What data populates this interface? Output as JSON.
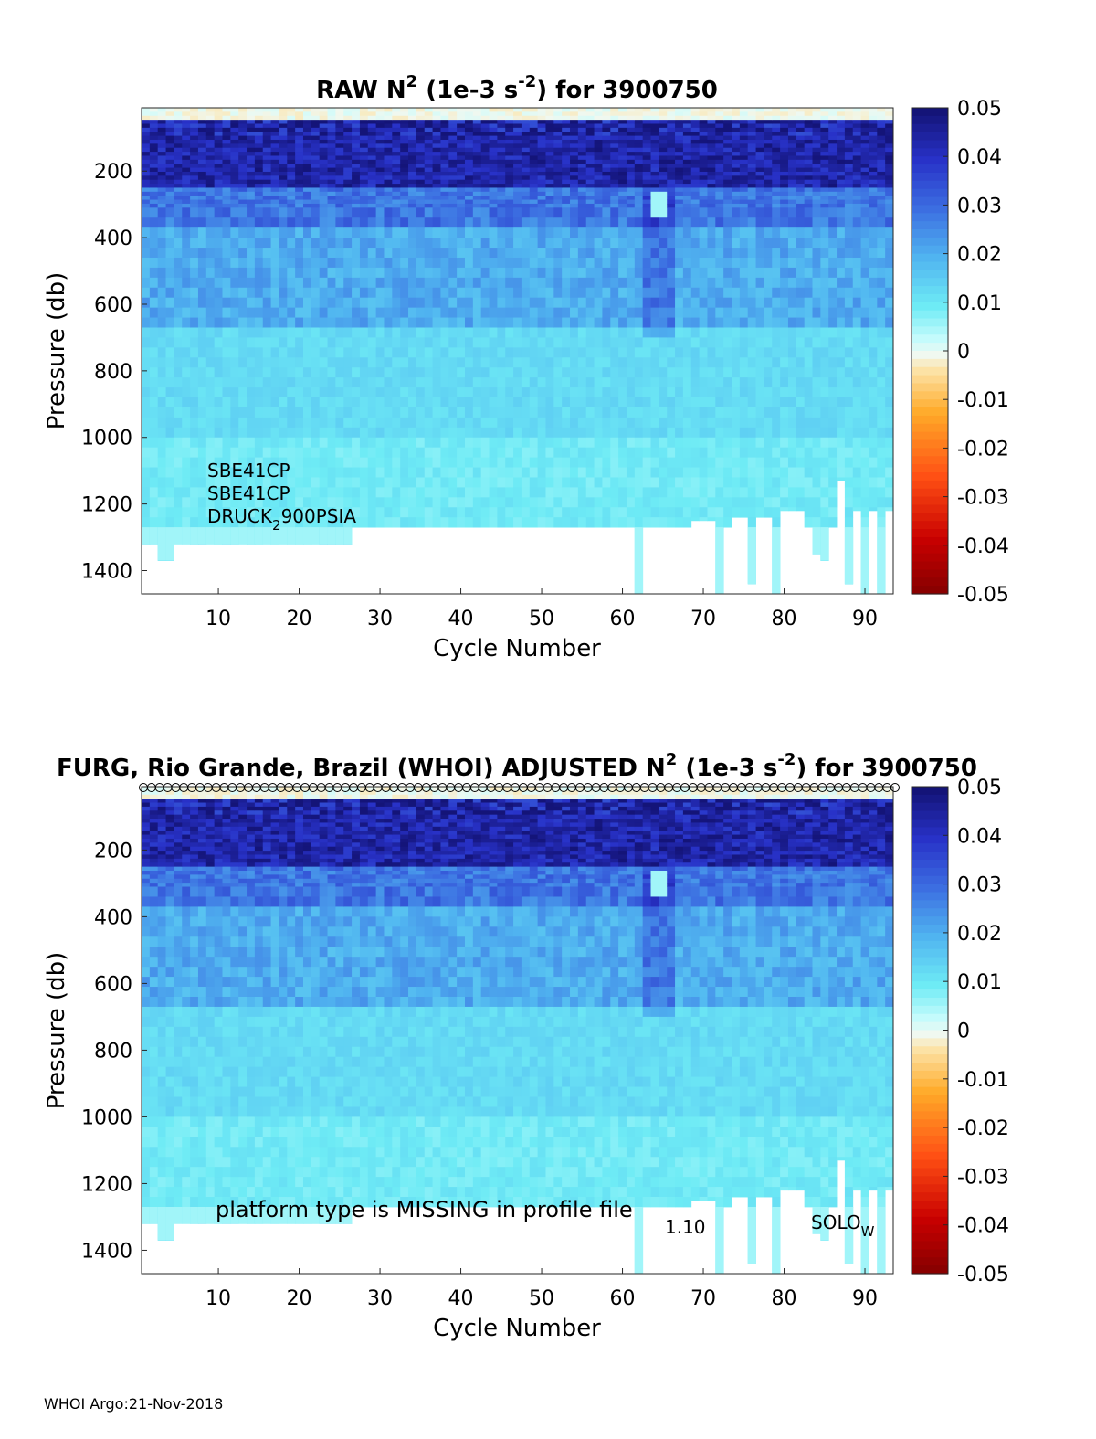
{
  "footer": "WHOI Argo:21-Nov-2018",
  "chart_data": [
    {
      "type": "heatmap",
      "title_parts": [
        "RAW N",
        "2",
        " (1e-3 s",
        "-2",
        ") for 3900750"
      ],
      "xlabel": "Cycle Number",
      "ylabel": "Pressure (db)",
      "xlim": [
        1,
        93
      ],
      "ylim": [
        1470,
        10
      ],
      "xticks": [
        10,
        20,
        30,
        40,
        50,
        60,
        70,
        80,
        90
      ],
      "yticks": [
        200,
        400,
        600,
        800,
        1000,
        1200,
        1400
      ],
      "colorbar": {
        "ticks": [
          "0.05",
          "0.04",
          "0.03",
          "0.02",
          "0.01",
          "0",
          "-0.01",
          "-0.02",
          "-0.03",
          "-0.04",
          "-0.05"
        ],
        "range": [
          -0.05,
          0.05
        ]
      },
      "annotations": [
        {
          "name": "sensor-1",
          "parts": [
            "SBE41CP"
          ]
        },
        {
          "name": "sensor-2",
          "parts": [
            "SBE41CP"
          ]
        },
        {
          "name": "sensor-3",
          "parts": [
            "DRUCK",
            "2",
            "900PSIA"
          ]
        }
      ],
      "profile_depth_by_cycle": {
        "default": 1270,
        "ranges": [
          [
            1,
            2,
            1320
          ],
          [
            3,
            4,
            1370
          ],
          [
            5,
            26,
            1320
          ],
          [
            62,
            62,
            1470
          ],
          [
            72,
            72,
            1470
          ],
          [
            76,
            76,
            1440
          ],
          [
            79,
            79,
            1470
          ],
          [
            84,
            84,
            1350
          ],
          [
            85,
            85,
            1370
          ],
          [
            88,
            88,
            1440
          ],
          [
            90,
            90,
            1470
          ],
          [
            92,
            92,
            1470
          ]
        ],
        "shallow": [
          [
            69,
            71,
            1250
          ],
          [
            74,
            75,
            1240
          ],
          [
            77,
            78,
            1240
          ],
          [
            80,
            82,
            1220
          ],
          [
            87,
            87,
            1130
          ],
          [
            89,
            89,
            1220
          ],
          [
            91,
            91,
            1220
          ],
          [
            93,
            93,
            1220
          ]
        ]
      }
    },
    {
      "type": "heatmap",
      "title_parts": [
        "FURG, Rio Grande, Brazil (WHOI)  ADJUSTED N",
        "2",
        " (1e-3 s",
        "-2",
        ") for 3900750"
      ],
      "xlabel": "Cycle Number",
      "ylabel": "Pressure (db)",
      "xlim": [
        1,
        93
      ],
      "ylim": [
        1470,
        10
      ],
      "xticks": [
        10,
        20,
        30,
        40,
        50,
        60,
        70,
        80,
        90
      ],
      "yticks": [
        200,
        400,
        600,
        800,
        1000,
        1200,
        1400
      ],
      "colorbar": {
        "ticks": [
          "0.05",
          "0.04",
          "0.03",
          "0.02",
          "0.01",
          "0",
          "-0.01",
          "-0.02",
          "-0.03",
          "-0.04",
          "-0.05"
        ],
        "range": [
          -0.05,
          0.05
        ]
      },
      "qc_markers": "o",
      "annotations": [
        {
          "name": "platform-note",
          "parts": [
            "platform type is MISSING in profile file"
          ]
        },
        {
          "name": "version-label",
          "parts": [
            "1.10"
          ]
        },
        {
          "name": "float-type-label",
          "parts": [
            "SOLO",
            "W"
          ]
        }
      ]
    }
  ]
}
